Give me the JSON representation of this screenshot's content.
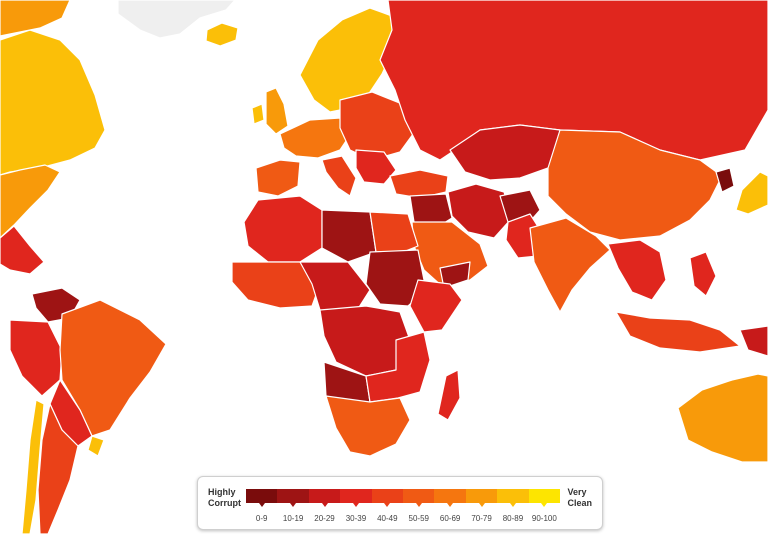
{
  "legend": {
    "left_line1": "Highly",
    "left_line2": "Corrupt",
    "right_line1": "Very",
    "right_line2": "Clean",
    "ranges": [
      "0-9",
      "10-19",
      "20-29",
      "30-39",
      "40-49",
      "50-59",
      "60-69",
      "70-79",
      "80-89",
      "90-100"
    ],
    "colors": [
      "#7a0c0c",
      "#9e1414",
      "#c71a1a",
      "#e0261e",
      "#ea4118",
      "#f05a14",
      "#f5760f",
      "#f89a0a",
      "#fbbf08",
      "#fde500"
    ]
  },
  "colors": {
    "background": "#ffffff",
    "border": "#ffffff",
    "no_data": "#efefef"
  }
}
